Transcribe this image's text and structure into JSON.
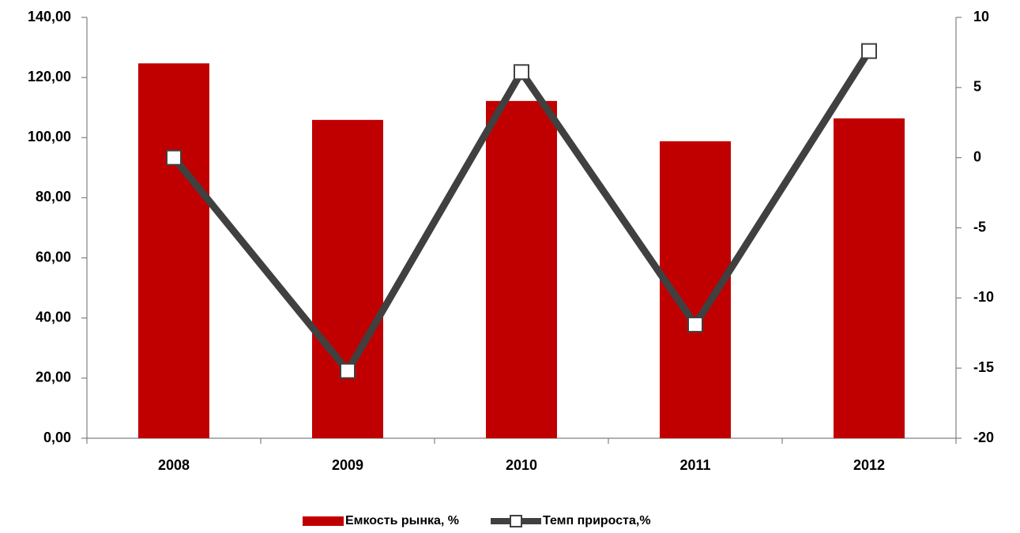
{
  "chart_data": {
    "type": "combo",
    "categories": [
      "2008",
      "2009",
      "2010",
      "2011",
      "2012"
    ],
    "series": [
      {
        "name": "Емкость рынка, %",
        "type": "bar",
        "color": "#c00000",
        "values": [
          124.7,
          105.9,
          112.2,
          98.8,
          106.4
        ]
      },
      {
        "name": "Темп прироста,%",
        "type": "line",
        "axis": "y2",
        "color": "#404040",
        "values": [
          0,
          -15.2,
          6.1,
          -11.9,
          7.6
        ]
      }
    ],
    "ylim": [
      0,
      140
    ],
    "yticks": [
      {
        "value": 0,
        "label": "0,00"
      },
      {
        "value": 20,
        "label": "20,00"
      },
      {
        "value": 40,
        "label": "40,00"
      },
      {
        "value": 60,
        "label": "60,00"
      },
      {
        "value": 80,
        "label": "80,00"
      },
      {
        "value": 100,
        "label": "100,00"
      },
      {
        "value": 120,
        "label": "120,00"
      },
      {
        "value": 140,
        "label": "140,00"
      }
    ],
    "y2lim": [
      -20,
      10
    ],
    "y2ticks": [
      -20,
      -15,
      -10,
      -5,
      0,
      5,
      10
    ],
    "grid": false,
    "legend": "bottom"
  }
}
